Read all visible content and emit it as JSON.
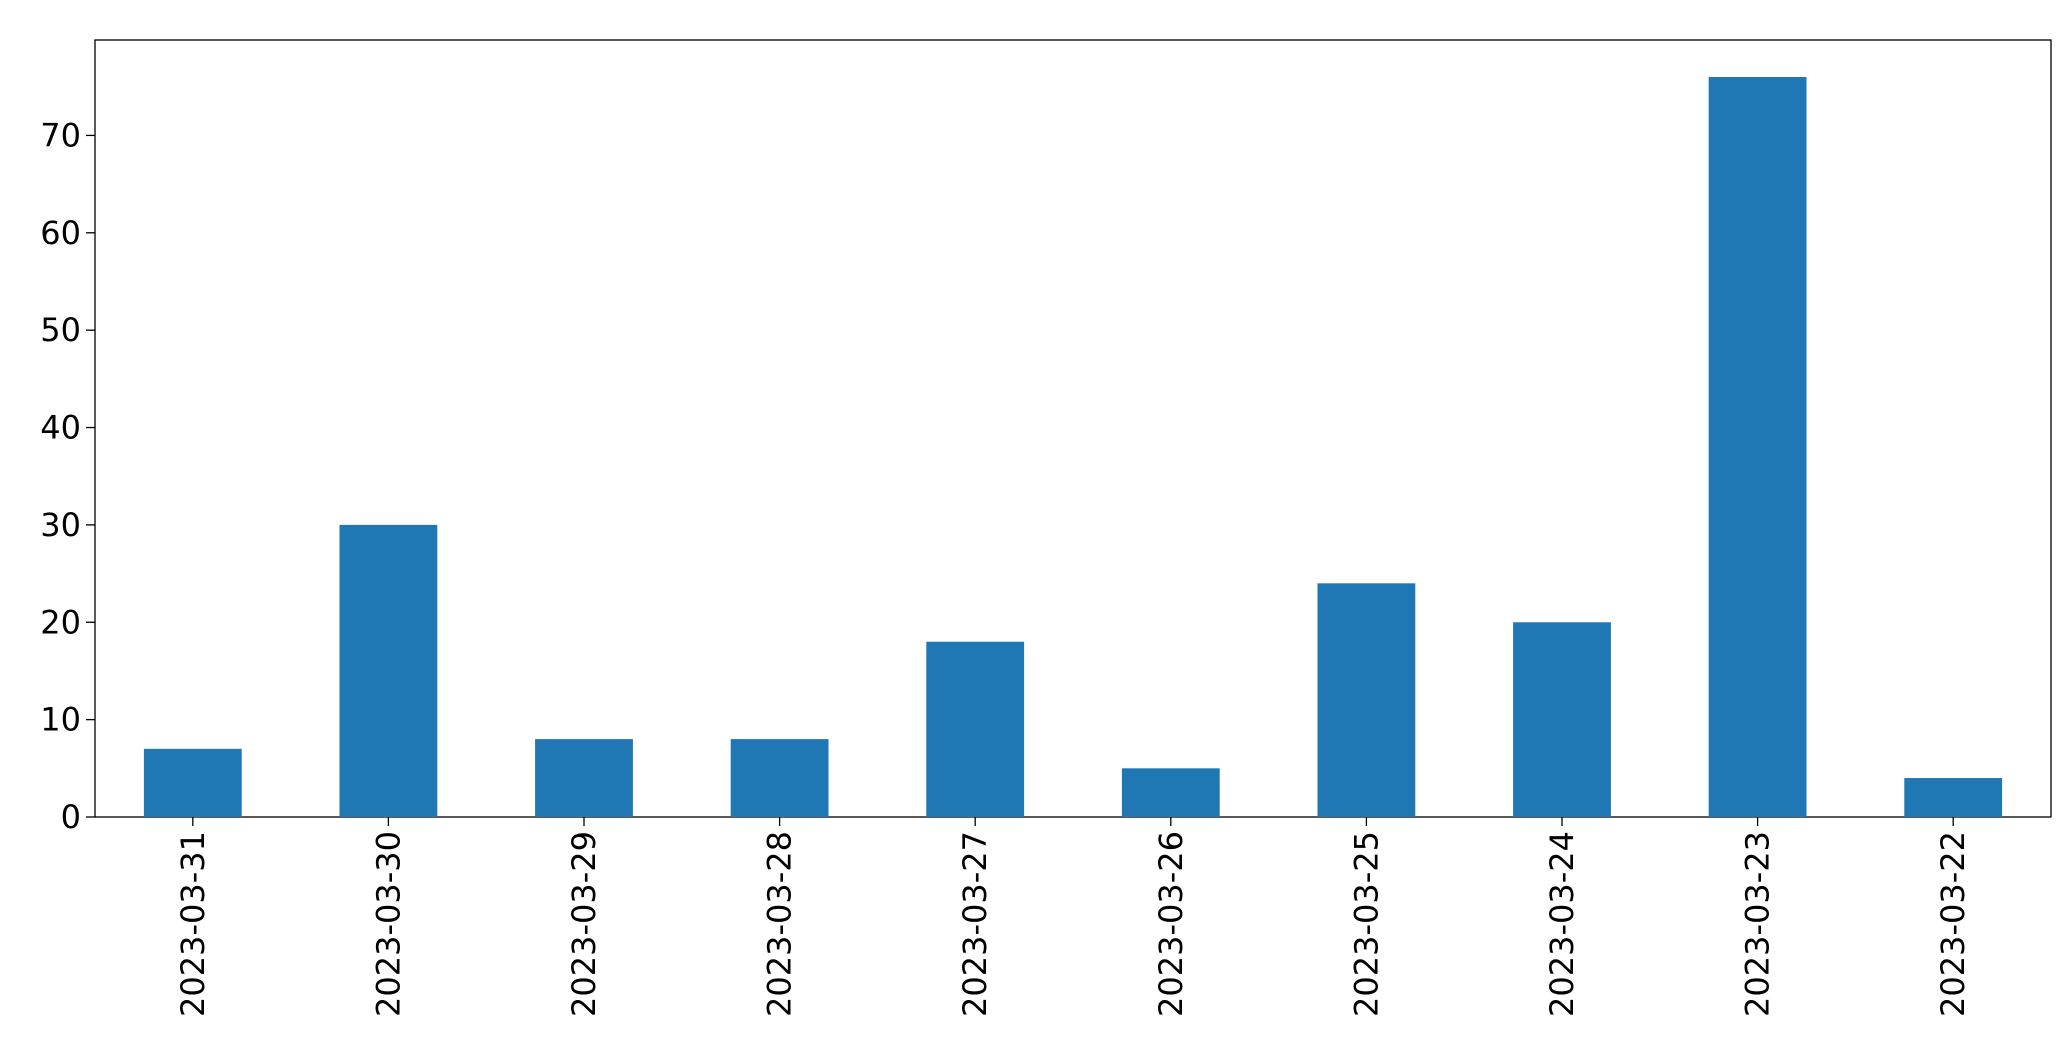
{
  "chart_data": {
    "type": "bar",
    "categories": [
      "2023-03-31",
      "2023-03-30",
      "2023-03-29",
      "2023-03-28",
      "2023-03-27",
      "2023-03-26",
      "2023-03-25",
      "2023-03-24",
      "2023-03-23",
      "2023-03-22"
    ],
    "values": [
      7,
      30,
      8,
      8,
      18,
      5,
      24,
      20,
      76,
      4
    ],
    "color": "#1f77b4",
    "ylim": [
      0,
      79.8
    ],
    "yticks": [
      0,
      10,
      20,
      30,
      40,
      50,
      60,
      70
    ],
    "grid": false
  }
}
